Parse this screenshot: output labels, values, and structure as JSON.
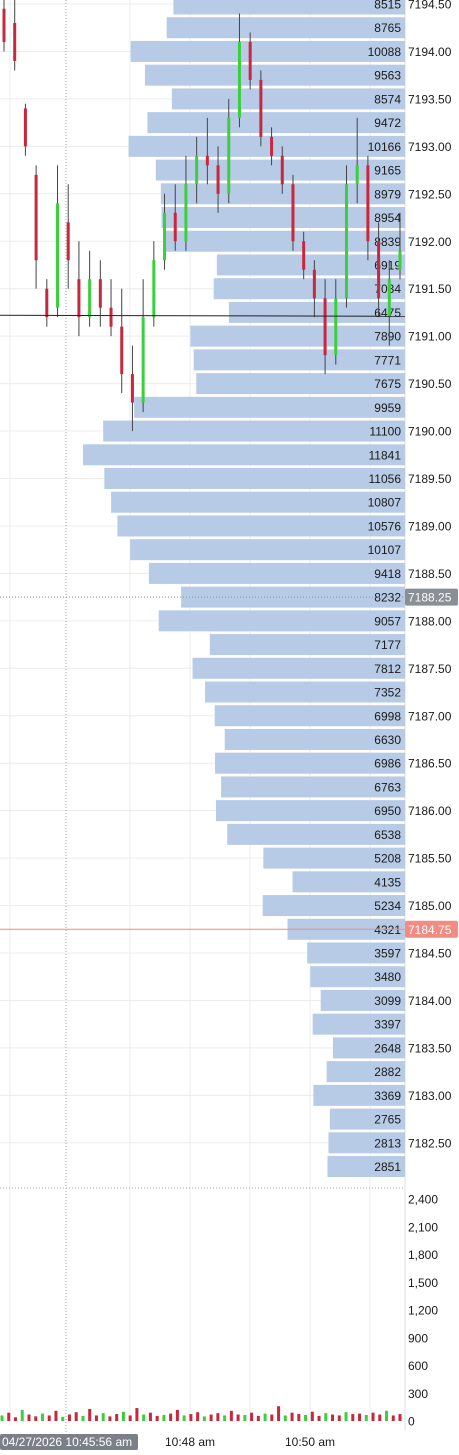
{
  "chart_data": {
    "type": "candlestick-volume-profile",
    "price_axis": {
      "ylim": [
        7182.2,
        7194.55
      ],
      "tick_labels": [
        "7194.50",
        "7194.00",
        "7193.50",
        "7193.00",
        "7192.50",
        "7192.00",
        "7191.50",
        "7191.00",
        "7190.50",
        "7190.00",
        "7189.50",
        "7189.00",
        "7188.50",
        "7188.00",
        "7187.50",
        "7187.00",
        "7186.50",
        "7186.00",
        "7185.50",
        "7185.00",
        "7184.50",
        "7184.00",
        "7183.50",
        "7183.00",
        "7182.50"
      ]
    },
    "volume_profile": {
      "price_step": 0.25,
      "levels": [
        {
          "price": 7194.5,
          "volume": 8515
        },
        {
          "price": 7194.25,
          "volume": 8765
        },
        {
          "price": 7194.0,
          "volume": 10088
        },
        {
          "price": 7193.75,
          "volume": 9563
        },
        {
          "price": 7193.5,
          "volume": 8574
        },
        {
          "price": 7193.25,
          "volume": 9472
        },
        {
          "price": 7193.0,
          "volume": 10166
        },
        {
          "price": 7192.75,
          "volume": 9165
        },
        {
          "price": 7192.5,
          "volume": 8979
        },
        {
          "price": 7192.25,
          "volume": 8954
        },
        {
          "price": 7192.0,
          "volume": 8839
        },
        {
          "price": 7191.75,
          "volume": 6919
        },
        {
          "price": 7191.5,
          "volume": 7034
        },
        {
          "price": 7191.25,
          "volume": 6475
        },
        {
          "price": 7191.0,
          "volume": 7890
        },
        {
          "price": 7190.75,
          "volume": 7771
        },
        {
          "price": 7190.5,
          "volume": 7675
        },
        {
          "price": 7190.25,
          "volume": 9959
        },
        {
          "price": 7190.0,
          "volume": 11100
        },
        {
          "price": 7189.75,
          "volume": 11841
        },
        {
          "price": 7189.5,
          "volume": 11056
        },
        {
          "price": 7189.25,
          "volume": 10807
        },
        {
          "price": 7189.0,
          "volume": 10576
        },
        {
          "price": 7188.75,
          "volume": 10107
        },
        {
          "price": 7188.5,
          "volume": 9418
        },
        {
          "price": 7188.25,
          "volume": 8232
        },
        {
          "price": 7188.0,
          "volume": 9057
        },
        {
          "price": 7187.75,
          "volume": 7177
        },
        {
          "price": 7187.5,
          "volume": 7812
        },
        {
          "price": 7187.25,
          "volume": 7352
        },
        {
          "price": 7187.0,
          "volume": 6998
        },
        {
          "price": 7186.75,
          "volume": 6630
        },
        {
          "price": 7186.5,
          "volume": 6986
        },
        {
          "price": 7186.25,
          "volume": 6763
        },
        {
          "price": 7186.0,
          "volume": 6950
        },
        {
          "price": 7185.75,
          "volume": 6538
        },
        {
          "price": 7185.5,
          "volume": 5208
        },
        {
          "price": 7185.25,
          "volume": 4135
        },
        {
          "price": 7185.0,
          "volume": 5234
        },
        {
          "price": 7184.75,
          "volume": 4321
        },
        {
          "price": 7184.5,
          "volume": 3597
        },
        {
          "price": 7184.25,
          "volume": 3480
        },
        {
          "price": 7184.0,
          "volume": 3099
        },
        {
          "price": 7183.75,
          "volume": 3397
        },
        {
          "price": 7183.5,
          "volume": 2648
        },
        {
          "price": 7183.25,
          "volume": 2882
        },
        {
          "price": 7183.0,
          "volume": 3369
        },
        {
          "price": 7182.75,
          "volume": 2765
        },
        {
          "price": 7182.5,
          "volume": 2813
        },
        {
          "price": 7182.25,
          "volume": 2851
        }
      ]
    },
    "price_markers": [
      {
        "price": 7188.25,
        "label": "7188.25",
        "color": "#8a8f96",
        "style": "dotted"
      },
      {
        "price": 7184.75,
        "label": "7184.75",
        "color": "#f28b82",
        "style": "solid"
      }
    ],
    "crosshair_price": 7191.22,
    "candles": [
      {
        "t": 0,
        "o": 7194.45,
        "h": 7194.55,
        "l": 7194.0,
        "c": 7194.1
      },
      {
        "t": 1,
        "o": 7194.3,
        "h": 7194.55,
        "l": 7193.8,
        "c": 7193.9
      },
      {
        "t": 2,
        "o": 7193.4,
        "h": 7193.45,
        "l": 7192.9,
        "c": 7193.0
      },
      {
        "t": 3,
        "o": 7192.7,
        "h": 7192.8,
        "l": 7191.5,
        "c": 7191.8
      },
      {
        "t": 4,
        "o": 7191.5,
        "h": 7191.6,
        "l": 7191.1,
        "c": 7191.2
      },
      {
        "t": 5,
        "o": 7191.3,
        "h": 7192.8,
        "l": 7191.2,
        "c": 7192.4
      },
      {
        "t": 6,
        "o": 7192.2,
        "h": 7192.6,
        "l": 7191.5,
        "c": 7191.8
      },
      {
        "t": 7,
        "o": 7191.6,
        "h": 7192.0,
        "l": 7191.0,
        "c": 7191.2
      },
      {
        "t": 8,
        "o": 7191.2,
        "h": 7191.9,
        "l": 7191.1,
        "c": 7191.6
      },
      {
        "t": 9,
        "o": 7191.6,
        "h": 7191.8,
        "l": 7191.1,
        "c": 7191.3
      },
      {
        "t": 10,
        "o": 7191.3,
        "h": 7191.6,
        "l": 7191.0,
        "c": 7191.1
      },
      {
        "t": 11,
        "o": 7191.1,
        "h": 7191.5,
        "l": 7190.4,
        "c": 7190.6
      },
      {
        "t": 12,
        "o": 7190.6,
        "h": 7190.9,
        "l": 7190.0,
        "c": 7190.3
      },
      {
        "t": 13,
        "o": 7190.3,
        "h": 7191.6,
        "l": 7190.2,
        "c": 7191.2
      },
      {
        "t": 14,
        "o": 7191.2,
        "h": 7192.0,
        "l": 7191.1,
        "c": 7191.8
      },
      {
        "t": 15,
        "o": 7191.8,
        "h": 7192.5,
        "l": 7191.7,
        "c": 7192.3
      },
      {
        "t": 16,
        "o": 7192.3,
        "h": 7192.6,
        "l": 7191.9,
        "c": 7192.0
      },
      {
        "t": 17,
        "o": 7192.0,
        "h": 7192.9,
        "l": 7191.9,
        "c": 7192.6
      },
      {
        "t": 18,
        "o": 7192.6,
        "h": 7193.1,
        "l": 7192.4,
        "c": 7192.9
      },
      {
        "t": 19,
        "o": 7192.9,
        "h": 7193.3,
        "l": 7192.6,
        "c": 7192.8
      },
      {
        "t": 20,
        "o": 7192.8,
        "h": 7193.0,
        "l": 7192.3,
        "c": 7192.5
      },
      {
        "t": 21,
        "o": 7192.5,
        "h": 7193.5,
        "l": 7192.4,
        "c": 7193.3
      },
      {
        "t": 22,
        "o": 7193.3,
        "h": 7194.4,
        "l": 7193.2,
        "c": 7194.1
      },
      {
        "t": 23,
        "o": 7194.1,
        "h": 7194.2,
        "l": 7193.6,
        "c": 7193.7
      },
      {
        "t": 24,
        "o": 7193.7,
        "h": 7193.8,
        "l": 7193.0,
        "c": 7193.1
      },
      {
        "t": 25,
        "o": 7193.1,
        "h": 7193.2,
        "l": 7192.8,
        "c": 7192.9
      },
      {
        "t": 26,
        "o": 7192.9,
        "h": 7193.0,
        "l": 7192.5,
        "c": 7192.6
      },
      {
        "t": 27,
        "o": 7192.6,
        "h": 7192.7,
        "l": 7191.9,
        "c": 7192.0
      },
      {
        "t": 28,
        "o": 7192.0,
        "h": 7192.1,
        "l": 7191.6,
        "c": 7191.7
      },
      {
        "t": 29,
        "o": 7191.7,
        "h": 7191.8,
        "l": 7191.2,
        "c": 7191.4
      },
      {
        "t": 30,
        "o": 7191.4,
        "h": 7191.6,
        "l": 7190.6,
        "c": 7190.8
      },
      {
        "t": 31,
        "o": 7190.8,
        "h": 7191.6,
        "l": 7190.7,
        "c": 7191.4
      },
      {
        "t": 32,
        "o": 7191.4,
        "h": 7192.8,
        "l": 7191.3,
        "c": 7192.6
      },
      {
        "t": 33,
        "o": 7192.6,
        "h": 7193.3,
        "l": 7192.4,
        "c": 7192.8
      },
      {
        "t": 34,
        "o": 7192.8,
        "h": 7192.9,
        "l": 7191.8,
        "c": 7192.0
      },
      {
        "t": 35,
        "o": 7192.0,
        "h": 7192.2,
        "l": 7191.2,
        "c": 7191.4
      },
      {
        "t": 36,
        "o": 7191.2,
        "h": 7191.8,
        "l": 7190.9,
        "c": 7191.6
      },
      {
        "t": 37,
        "o": 7191.7,
        "h": 7192.3,
        "l": 7191.6,
        "c": 7191.9
      }
    ],
    "volume_axis": {
      "ylim": [
        0,
        2550
      ],
      "tick_labels": [
        "2,400",
        "2,100",
        "1,800",
        "1,500",
        "1,200",
        "900",
        "600",
        "300",
        "0"
      ],
      "tick_values": [
        2400,
        2100,
        1800,
        1500,
        1200,
        900,
        600,
        300,
        0
      ]
    },
    "volume_bars": [
      60,
      90,
      40,
      120,
      70,
      50,
      80,
      60,
      110,
      45,
      70,
      95,
      55,
      130,
      60,
      85,
      50,
      75,
      100,
      60,
      140,
      70,
      90,
      55,
      65,
      80,
      120,
      60,
      75,
      95,
      50,
      70,
      85,
      60,
      110,
      70,
      65,
      90,
      55,
      80,
      70,
      160,
      60,
      90,
      75,
      65,
      100,
      55,
      85,
      70,
      60,
      95,
      75,
      80,
      65,
      90,
      70,
      110,
      60,
      75
    ],
    "time_axis": {
      "labels": [
        "10:48 am",
        "10:50 am"
      ],
      "cursor_label": "04/27/2026 10:45:56 am"
    },
    "colors": {
      "profile_bar": "#b7cbe6",
      "up_candle": "#3ccf3c",
      "down_candle": "#c8283c",
      "grid": "#ececec",
      "crosshair": "#222222"
    }
  }
}
